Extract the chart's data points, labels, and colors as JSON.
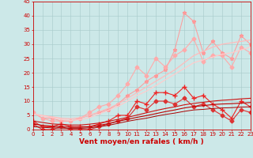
{
  "x": [
    0,
    1,
    2,
    3,
    4,
    5,
    6,
    7,
    8,
    9,
    10,
    11,
    12,
    13,
    14,
    15,
    16,
    17,
    18,
    19,
    20,
    21,
    22,
    23
  ],
  "series": [
    {
      "name": "rafales_max_spiky",
      "color": "#ff9999",
      "linewidth": 0.7,
      "marker": "*",
      "markersize": 3.5,
      "y": [
        6,
        4,
        4,
        3,
        3,
        4,
        5,
        6,
        7,
        9,
        12,
        14,
        17,
        19,
        21,
        28,
        41,
        38,
        27,
        31,
        27,
        25,
        33,
        30
      ]
    },
    {
      "name": "rafales_mean_line",
      "color": "#ffaaaa",
      "linewidth": 0.8,
      "marker": "D",
      "markersize": 2.5,
      "y": [
        6,
        4,
        3,
        3,
        3,
        4,
        6,
        8,
        9,
        12,
        16,
        22,
        19,
        25,
        22,
        26,
        28,
        32,
        24,
        26,
        26,
        22,
        29,
        27
      ]
    },
    {
      "name": "trend_upper",
      "color": "#ffbbbb",
      "linewidth": 0.9,
      "marker": null,
      "markersize": 0,
      "y": [
        5.5,
        5.0,
        4.5,
        4.0,
        3.8,
        4.2,
        5.0,
        6.2,
        7.5,
        9.0,
        11.0,
        13.0,
        15.0,
        17.0,
        19.0,
        21.0,
        23.5,
        26.0,
        27.5,
        29.0,
        30.0,
        30.5,
        31.0,
        31.5
      ]
    },
    {
      "name": "trend_lower",
      "color": "#ffcccc",
      "linewidth": 0.9,
      "marker": null,
      "markersize": 0,
      "y": [
        5.5,
        4.8,
        4.2,
        3.6,
        3.2,
        3.5,
        4.2,
        5.5,
        6.8,
        8.2,
        10.0,
        12.0,
        13.5,
        15.5,
        17.5,
        19.5,
        21.5,
        23.5,
        24.5,
        25.5,
        26.5,
        27.0,
        28.0,
        29.0
      ]
    },
    {
      "name": "vent_max",
      "color": "#ee2222",
      "linewidth": 0.8,
      "marker": "+",
      "markersize": 4,
      "y": [
        3,
        1,
        1,
        2,
        1,
        1,
        1,
        2,
        3,
        5,
        5,
        10,
        9,
        13,
        13,
        12,
        15,
        11,
        12,
        9,
        7,
        4,
        10,
        8
      ]
    },
    {
      "name": "vent_mean",
      "color": "#dd3333",
      "linewidth": 0.8,
      "marker": "D",
      "markersize": 2.5,
      "y": [
        2,
        0,
        0,
        1,
        0,
        0,
        0,
        1,
        2,
        3,
        4,
        8,
        7,
        10,
        10,
        9,
        11,
        8,
        9,
        7,
        5,
        3,
        7,
        6
      ]
    },
    {
      "name": "base_trend1",
      "color": "#cc1111",
      "linewidth": 0.8,
      "marker": null,
      "markersize": 0,
      "y": [
        3,
        2.5,
        2.0,
        1.8,
        1.6,
        1.6,
        1.9,
        2.3,
        2.9,
        3.6,
        4.3,
        5.1,
        5.9,
        6.7,
        7.4,
        8.0,
        8.7,
        9.2,
        9.6,
        10.0,
        10.3,
        10.5,
        10.8,
        11.0
      ]
    },
    {
      "name": "base_trend2",
      "color": "#bb0000",
      "linewidth": 0.8,
      "marker": null,
      "markersize": 0,
      "y": [
        2,
        1.5,
        1.2,
        1.0,
        0.8,
        0.8,
        1.0,
        1.5,
        2.1,
        2.9,
        3.6,
        4.3,
        4.9,
        5.6,
        6.3,
        6.9,
        7.6,
        8.1,
        8.4,
        8.8,
        9.0,
        9.1,
        9.3,
        9.5
      ]
    },
    {
      "name": "base_trend3",
      "color": "#aa0000",
      "linewidth": 0.7,
      "marker": null,
      "markersize": 0,
      "y": [
        1,
        0.8,
        0.6,
        0.5,
        0.4,
        0.4,
        0.6,
        1.0,
        1.5,
        2.2,
        2.9,
        3.5,
        4.0,
        4.7,
        5.3,
        5.8,
        6.4,
        6.9,
        7.1,
        7.4,
        7.6,
        7.7,
        7.9,
        8.0
      ]
    }
  ],
  "xlabel": "Vent moyen/en rafales ( km/h )",
  "xlabel_color": "#cc0000",
  "xlabel_fontsize": 6.5,
  "xlabel_bold": true,
  "ylim": [
    0,
    45
  ],
  "yticks": [
    0,
    5,
    10,
    15,
    20,
    25,
    30,
    35,
    40,
    45
  ],
  "xlim": [
    0,
    23
  ],
  "xticks": [
    0,
    1,
    2,
    3,
    4,
    5,
    6,
    7,
    8,
    9,
    10,
    11,
    12,
    13,
    14,
    15,
    16,
    17,
    18,
    19,
    20,
    21,
    22,
    23
  ],
  "background_color": "#cce8e8",
  "grid_color": "#aacccc",
  "tick_color": "#cc0000",
  "tick_fontsize": 5.0,
  "spine_color": "#cc0000"
}
